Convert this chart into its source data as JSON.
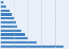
{
  "values": [
    33347,
    19000,
    14500,
    13000,
    11000,
    9000,
    8000,
    7000,
    5800,
    4800,
    3000,
    1500
  ],
  "bar_color": "#3c7fc0",
  "background_color": "#eaf0f8",
  "grid_color": "#c0c8d8",
  "xlim": [
    0,
    36000
  ],
  "n_bars": 12,
  "bar_height": 0.55
}
